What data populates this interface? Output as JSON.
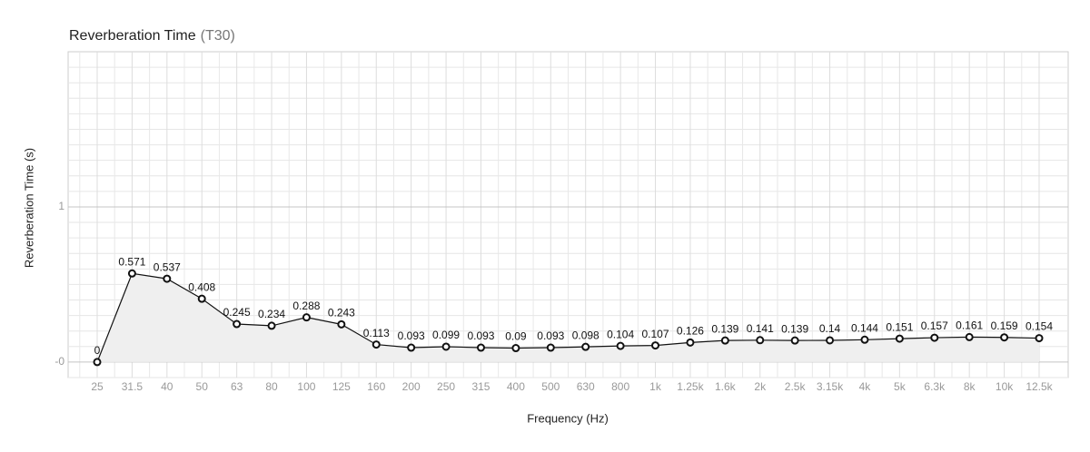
{
  "chart_data": {
    "type": "line",
    "title": "Reverberation Time",
    "title_note": "(T30)",
    "x_label": "Frequency (Hz)",
    "y_label": "Reverberation Time (s)",
    "categories": [
      "25",
      "31.5",
      "40",
      "50",
      "63",
      "80",
      "100",
      "125",
      "160",
      "200",
      "250",
      "315",
      "400",
      "500",
      "630",
      "800",
      "1k",
      "1.25k",
      "1.6k",
      "2k",
      "2.5k",
      "3.15k",
      "4k",
      "5k",
      "6.3k",
      "8k",
      "10k",
      "12.5k"
    ],
    "values": [
      0,
      0.571,
      0.537,
      0.408,
      0.245,
      0.234,
      0.288,
      0.243,
      0.113,
      0.093,
      0.099,
      0.093,
      0.09,
      0.093,
      0.098,
      0.104,
      0.107,
      0.126,
      0.139,
      0.141,
      0.139,
      0.14,
      0.144,
      0.151,
      0.157,
      0.161,
      0.159,
      0.154
    ],
    "color": "#111111",
    "fill": "#efefef",
    "ylim": [
      -0.1,
      2
    ],
    "yticks": [
      {
        "value": 0,
        "label": "-0"
      },
      1
    ],
    "grid": true
  }
}
